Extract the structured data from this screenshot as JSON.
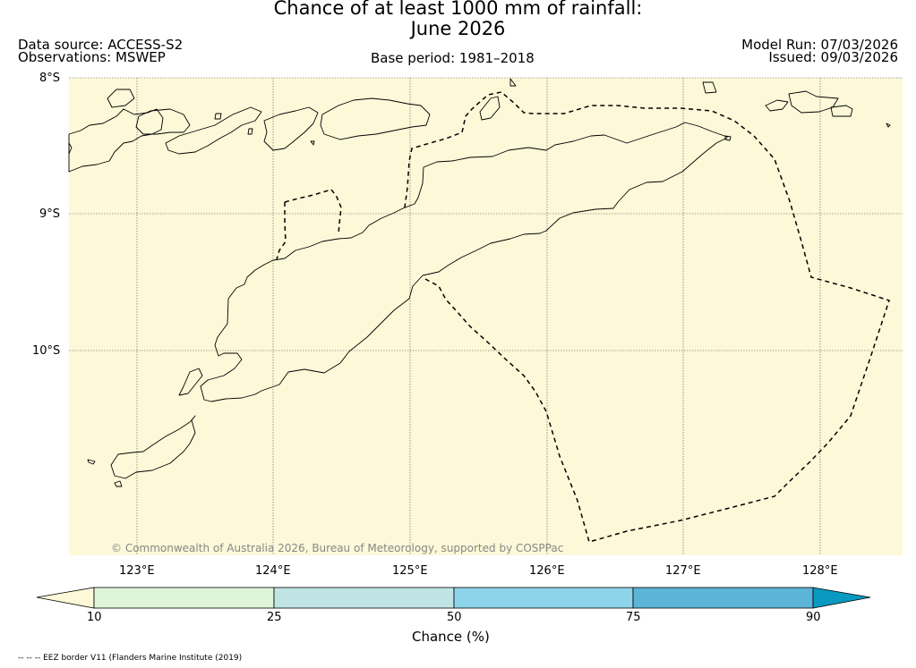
{
  "header": {
    "title_line1": "Chance of at least 1000 mm of rainfall:",
    "title_line2": "June 2026",
    "data_source": "Data source: ACCESS-S2",
    "observations": "Observations: MSWEP",
    "base_period": "Base period: 1981–2018",
    "model_run": "Model Run: 07/03/2026",
    "issued": "Issued: 09/03/2026"
  },
  "map": {
    "lat_labels": [
      "8°S",
      "9°S",
      "10°S"
    ],
    "lon_labels": [
      "123°E",
      "124°E",
      "125°E",
      "126°E",
      "127°E",
      "128°E"
    ],
    "lon_range": [
      122.5,
      128.6
    ],
    "lat_range": [
      -8.0,
      -11.5
    ],
    "background_color": "#fdf8d8",
    "copyright": "© Commonwealth of Australia 2026, Bureau of Meteorology, supported by COSPPac"
  },
  "colorbar": {
    "ticks": [
      "10",
      "25",
      "50",
      "75",
      "90"
    ],
    "label": "Chance (%)",
    "colors": [
      "#fdf8d8",
      "#def5da",
      "#c0e4e4",
      "#8dd4ea",
      "#5cb4d6",
      "#0a9ac1"
    ]
  },
  "footer": {
    "eez_note": "-- -- -- EEZ border V11 (Flanders Marine Institute (2019)"
  }
}
